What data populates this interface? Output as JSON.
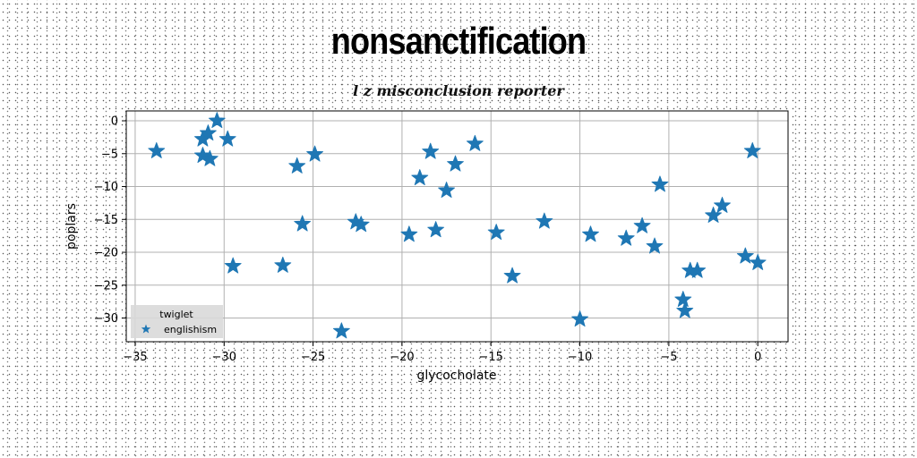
{
  "chart_data": {
    "type": "scatter",
    "title": "nonsanctification",
    "subtitle": "l z misconclusion reporter",
    "xlabel": "glycocholate",
    "ylabel": "poplars",
    "xlim": [
      -35.5,
      1.7
    ],
    "ylim": [
      -33.6,
      1.5
    ],
    "xticks": [
      -35,
      -30,
      -25,
      -20,
      -15,
      -10,
      -5,
      0
    ],
    "yticks": [
      0,
      -5,
      -10,
      -15,
      -20,
      -25,
      -30
    ],
    "xtick_labels": [
      "−35",
      "−30",
      "−25",
      "−20",
      "−15",
      "−10",
      "−5",
      "0"
    ],
    "ytick_labels": [
      "0",
      "−5",
      "−10",
      "−15",
      "−20",
      "−25",
      "−30"
    ],
    "grid": true,
    "legend": {
      "title": "twiglet",
      "placement": "bottom-left"
    },
    "series": [
      {
        "name": "englishism",
        "marker": "star",
        "color": "#1f77b4",
        "points": [
          [
            -33.8,
            -4.6
          ],
          [
            -31.2,
            -2.8
          ],
          [
            -30.9,
            -1.9
          ],
          [
            -30.4,
            0.0
          ],
          [
            -31.2,
            -5.3
          ],
          [
            -30.8,
            -5.8
          ],
          [
            -29.8,
            -2.8
          ],
          [
            -29.5,
            -22.1
          ],
          [
            -26.7,
            -22.0
          ],
          [
            -25.9,
            -6.9
          ],
          [
            -25.6,
            -15.7
          ],
          [
            -24.9,
            -5.1
          ],
          [
            -23.4,
            -32.0
          ],
          [
            -22.6,
            -15.4
          ],
          [
            -22.3,
            -15.8
          ],
          [
            -19.6,
            -17.3
          ],
          [
            -19.0,
            -8.7
          ],
          [
            -18.4,
            -4.7
          ],
          [
            -18.1,
            -16.6
          ],
          [
            -17.5,
            -10.6
          ],
          [
            -17.0,
            -6.6
          ],
          [
            -15.9,
            -3.5
          ],
          [
            -14.7,
            -17.0
          ],
          [
            -13.8,
            -23.6
          ],
          [
            -12.0,
            -15.3
          ],
          [
            -10.0,
            -30.2
          ],
          [
            -9.4,
            -17.3
          ],
          [
            -7.4,
            -17.9
          ],
          [
            -6.5,
            -16.0
          ],
          [
            -5.8,
            -19.1
          ],
          [
            -5.5,
            -9.7
          ],
          [
            -4.2,
            -27.2
          ],
          [
            -4.1,
            -28.9
          ],
          [
            -3.8,
            -22.8
          ],
          [
            -3.4,
            -22.8
          ],
          [
            -2.5,
            -14.4
          ],
          [
            -2.0,
            -12.9
          ],
          [
            -0.7,
            -20.6
          ],
          [
            -0.3,
            -4.6
          ],
          [
            0.0,
            -21.6
          ]
        ]
      }
    ]
  }
}
